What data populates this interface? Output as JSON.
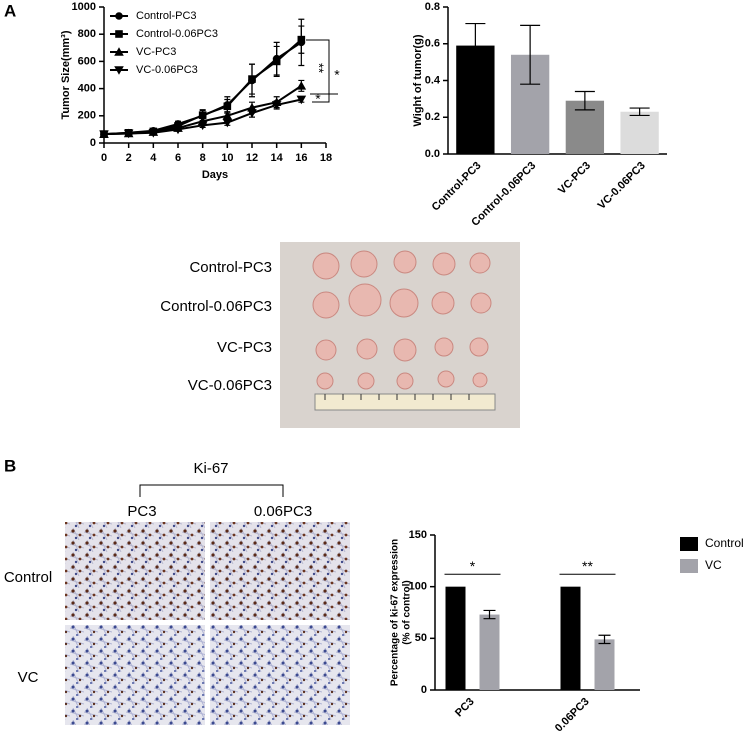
{
  "chart_data": [
    {
      "type": "line",
      "ylabel": "Tumor Size(mm³)",
      "xlabel": "Days",
      "x": [
        0,
        2,
        4,
        6,
        8,
        10,
        12,
        14,
        16
      ],
      "xlim": [
        0,
        18
      ],
      "xticks": [
        0,
        2,
        4,
        6,
        8,
        10,
        12,
        14,
        16,
        18
      ],
      "ylim": [
        0,
        1000
      ],
      "yticks": [
        0,
        200,
        400,
        600,
        800,
        1000
      ],
      "series": [
        {
          "name": "Control-PC3",
          "color": "#000000",
          "marker": "circle",
          "values": [
            65,
            75,
            90,
            140,
            200,
            280,
            460,
            620,
            740
          ],
          "errors": [
            8,
            10,
            12,
            20,
            40,
            60,
            120,
            120,
            170
          ]
        },
        {
          "name": "Control-0.06PC3",
          "color": "#000000",
          "marker": "square",
          "values": [
            65,
            75,
            85,
            125,
            205,
            270,
            470,
            600,
            760
          ],
          "errors": [
            8,
            10,
            12,
            20,
            40,
            50,
            110,
            110,
            100
          ]
        },
        {
          "name": "VC-PC3",
          "color": "#000000",
          "marker": "triangle-up",
          "values": [
            65,
            70,
            80,
            110,
            160,
            200,
            260,
            300,
            420
          ],
          "errors": [
            8,
            8,
            10,
            15,
            20,
            30,
            40,
            40,
            40
          ]
        },
        {
          "name": "VC-0.06PC3",
          "color": "#000000",
          "marker": "triangle-down",
          "values": [
            65,
            70,
            75,
            100,
            130,
            150,
            220,
            280,
            320
          ],
          "errors": [
            8,
            8,
            10,
            12,
            15,
            20,
            30,
            30,
            20
          ]
        }
      ],
      "annotations": [
        "**",
        "*",
        "*"
      ]
    },
    {
      "type": "bar",
      "ylabel": "Wight of tumor(g)",
      "categories": [
        "Control-PC3",
        "Control-0.06PC3",
        "VC-PC3",
        "VC-0.06PC3"
      ],
      "values": [
        0.59,
        0.54,
        0.29,
        0.23
      ],
      "errors": [
        0.12,
        0.16,
        0.05,
        0.02
      ],
      "colors": [
        "#000000",
        "#a3a3aa",
        "#8a8a8a",
        "#dcdcdc"
      ],
      "ylim": [
        0,
        0.8
      ],
      "yticks": [
        {
          "value": 0,
          "label": "0.0"
        },
        0.2,
        0.4,
        0.6,
        0.8
      ]
    },
    {
      "type": "bar",
      "ylabel": [
        "Percentage of ki-67 expression",
        "(% of control)"
      ],
      "categories": [
        "PC3",
        "0.06PC3"
      ],
      "series": [
        {
          "name": "Control",
          "color": "#000000",
          "values": [
            100,
            100
          ],
          "errors": [
            0,
            0
          ]
        },
        {
          "name": "VC",
          "color": "#a3a3aa",
          "values": [
            73,
            49
          ],
          "errors": [
            4,
            4
          ]
        }
      ],
      "ylim": [
        0,
        150
      ],
      "yticks": [
        0,
        50,
        100,
        150
      ],
      "legend": "top-right",
      "annotations": [
        "*",
        "**"
      ]
    }
  ],
  "figure": {
    "panels": [
      "A",
      "B"
    ],
    "photo_labels": [
      "Control-PC3",
      "Control-0.06PC3",
      "VC-PC3",
      "VC-0.06PC3"
    ],
    "ihc": {
      "marker": "Ki-67",
      "columns": [
        "PC3",
        "0.06PC3"
      ],
      "rows": [
        "Control",
        "VC"
      ]
    }
  }
}
